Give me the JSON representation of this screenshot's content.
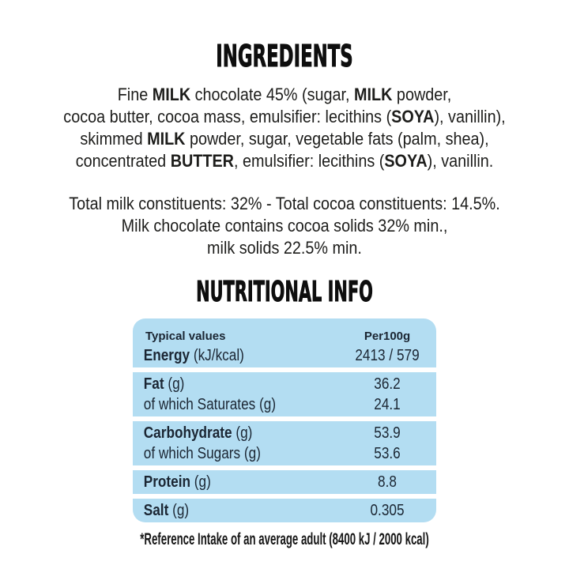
{
  "colors": {
    "table_bg": "#b3ddf2",
    "text": "#1d1d1b",
    "table_text": "#1b2633"
  },
  "ingredients": {
    "heading": "INGREDIENTS",
    "lines": [
      [
        {
          "t": "Fine "
        },
        {
          "t": "MILK",
          "b": true
        },
        {
          "t": " chocolate 45% (sugar, "
        },
        {
          "t": "MILK",
          "b": true
        },
        {
          "t": " powder,"
        }
      ],
      [
        {
          "t": "cocoa butter, cocoa mass, emulsifier: lecithins ("
        },
        {
          "t": "SOYA",
          "b": true
        },
        {
          "t": "), vanillin),"
        }
      ],
      [
        {
          "t": "skimmed "
        },
        {
          "t": "MILK",
          "b": true
        },
        {
          "t": " powder, sugar, vegetable fats (palm, shea),"
        }
      ],
      [
        {
          "t": "concentrated "
        },
        {
          "t": "BUTTER",
          "b": true
        },
        {
          "t": ", emulsifier: lecithins ("
        },
        {
          "t": "SOYA",
          "b": true
        },
        {
          "t": "), vanillin."
        }
      ]
    ]
  },
  "constituents": {
    "lines": [
      [
        {
          "t": "Total milk constituents: 32% - Total cocoa constituents: 14.5%."
        }
      ],
      [
        {
          "t": "Milk chocolate contains cocoa solids 32% min.,"
        }
      ],
      [
        {
          "t": "milk solids 22.5% min."
        }
      ]
    ]
  },
  "nutrition": {
    "heading": "NUTRITIONAL INFO",
    "table": {
      "blocks": [
        {
          "rows": [
            {
              "header": true,
              "label": [
                {
                  "t": "Typical values",
                  "b": true
                }
              ],
              "value": "Per100g"
            },
            {
              "label": [
                {
                  "t": "Energy",
                  "b": true
                },
                {
                  "t": " (kJ/kcal)"
                }
              ],
              "value": "2413 / 579"
            }
          ]
        },
        {
          "rows": [
            {
              "label": [
                {
                  "t": "Fat",
                  "b": true
                },
                {
                  "t": " (g)"
                }
              ],
              "value": "36.2"
            },
            {
              "label": [
                {
                  "t": "of which Saturates (g)"
                }
              ],
              "value": "24.1"
            }
          ]
        },
        {
          "rows": [
            {
              "label": [
                {
                  "t": "Carbohydrate",
                  "b": true
                },
                {
                  "t": " (g)"
                }
              ],
              "value": "53.9"
            },
            {
              "label": [
                {
                  "t": "of which Sugars (g)"
                }
              ],
              "value": "53.6"
            }
          ]
        },
        {
          "rows": [
            {
              "label": [
                {
                  "t": "Protein",
                  "b": true
                },
                {
                  "t": " (g)"
                }
              ],
              "value": "8.8"
            }
          ]
        },
        {
          "rows": [
            {
              "label": [
                {
                  "t": "Salt",
                  "b": true
                },
                {
                  "t": " (g)"
                }
              ],
              "value": "0.305"
            }
          ]
        }
      ]
    },
    "footnote": "*Reference Intake of an average adult (8400 kJ / 2000 kcal)"
  }
}
